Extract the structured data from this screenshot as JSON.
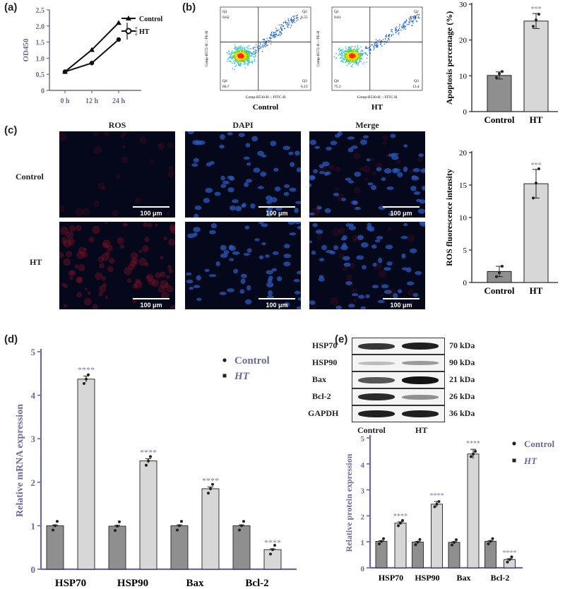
{
  "panels": {
    "a": "(a)",
    "b": "(b)",
    "c": "(c)",
    "d": "(d)",
    "e": "(e)"
  },
  "chart_data": [
    {
      "id": "a",
      "type": "line",
      "categories": [
        "0 h",
        "12 h",
        "24 h"
      ],
      "series": [
        {
          "name": "Control",
          "values": [
            0.58,
            1.26,
            2.1
          ],
          "marker": "triangle"
        },
        {
          "name": "HT",
          "values": [
            0.58,
            0.85,
            1.58
          ],
          "marker": "circle"
        }
      ],
      "ylabel": "OD450",
      "ylim": [
        0,
        2.5
      ],
      "yticks": [
        "0",
        "0.5",
        "1.0",
        "1.5",
        "2.0",
        "2.5"
      ],
      "annotation": "***",
      "legend": "top-right"
    },
    {
      "id": "b",
      "type": "bar",
      "categories": [
        "Control",
        "HT"
      ],
      "values": [
        10.1,
        25.3
      ],
      "errors": [
        1.0,
        2.1
      ],
      "points": [
        [
          9.5,
          10.6,
          11.2
        ],
        [
          23.8,
          25.6,
          27.2
        ]
      ],
      "significance": [
        "",
        "***"
      ],
      "ylabel": "Apoptosis percentage (%)",
      "ylim": [
        0,
        30
      ],
      "yticks": [
        "0",
        "10",
        "20",
        "30"
      ]
    },
    {
      "id": "c",
      "type": "bar",
      "categories": [
        "Control",
        "HT"
      ],
      "values": [
        1.7,
        15.2
      ],
      "errors": [
        0.8,
        2.2
      ],
      "points": [
        [
          0.9,
          1.5,
          2.5
        ],
        [
          13.0,
          15.3,
          17.5
        ]
      ],
      "significance": [
        "",
        "***"
      ],
      "ylabel": "ROS fluorescence intensity",
      "ylim": [
        0,
        20
      ],
      "yticks": [
        "0",
        "5",
        "10",
        "15",
        "20"
      ]
    },
    {
      "id": "d",
      "type": "bar",
      "categories": [
        "HSP70",
        "HSP90",
        "Bax",
        "Bcl-2"
      ],
      "series": [
        {
          "name": "Control",
          "values": [
            1.0,
            0.99,
            1.0,
            1.0
          ]
        },
        {
          "name": "HT",
          "values": [
            4.37,
            2.49,
            1.85,
            0.45
          ]
        }
      ],
      "errors": [
        [
          0.02,
          0.02,
          0.02,
          0.02
        ],
        [
          0.07,
          0.05,
          0.04,
          0.02
        ]
      ],
      "significance": [
        "****",
        "****",
        "****",
        "****"
      ],
      "ylabel": "Relative mRNA expression",
      "ylim": [
        0,
        5
      ],
      "yticks": [
        "0",
        "1",
        "2",
        "3",
        "4",
        "5"
      ],
      "legend": "top-right"
    },
    {
      "id": "e",
      "type": "bar",
      "categories": [
        "HSP70",
        "HSP90",
        "Bax",
        "Bcl-2"
      ],
      "series": [
        {
          "name": "Control",
          "values": [
            1.02,
            0.99,
            0.98,
            1.02
          ]
        },
        {
          "name": "HT",
          "values": [
            1.72,
            2.45,
            4.38,
            0.32
          ]
        }
      ],
      "errors": [
        [
          0.02,
          0.02,
          0.02,
          0.02
        ],
        [
          0.05,
          0.1,
          0.18,
          0.03
        ]
      ],
      "significance": [
        "****",
        "****",
        "****",
        "****"
      ],
      "ylabel": "Relative protein expression",
      "ylim": [
        0,
        5
      ],
      "yticks": [
        "0",
        "1",
        "2",
        "3",
        "4",
        "5"
      ],
      "legend": "top-right"
    }
  ],
  "flow": {
    "plots": [
      {
        "caption": "Control",
        "q1": "Q1",
        "q1v": "0.62",
        "q2": "Q2",
        "q2v": "6.55",
        "q3": "Q3",
        "q3v": "6.15",
        "q4": "Q4",
        "q4v": "86.7",
        "ylabel": "Comp-B572-H :: PE-H",
        "xlabel": "Comp-B530-H :: FITC-H"
      },
      {
        "caption": "HT",
        "q1": "Q1",
        "q1v": "0.81",
        "q2": "Q2",
        "q2v": "10.4",
        "q3": "Q3",
        "q3v": "13.4",
        "q4": "Q4",
        "q4v": "75.3",
        "ylabel": "Comp-B572-H :: PE-H",
        "xlabel": "Comp-B530-H :: FITC-H"
      }
    ]
  },
  "microscopy": {
    "columns": [
      "ROS",
      "DAPI",
      "Merge"
    ],
    "rows": [
      "Control",
      "HT"
    ],
    "scale_bar": "100 μm"
  },
  "blot": {
    "proteins": [
      {
        "name": "HSP70",
        "kda": "70 kDa"
      },
      {
        "name": "HSP90",
        "kda": "90 kDa"
      },
      {
        "name": "Bax",
        "kda": "21 kDa"
      },
      {
        "name": "Bcl-2",
        "kda": "26 kDa"
      },
      {
        "name": "GAPDH",
        "kda": "36 kDa"
      }
    ],
    "lanes": [
      "Control",
      "HT"
    ]
  },
  "colors": {
    "control_bar": "#8f8f8f",
    "ht_bar": "#d7d7d7",
    "axis_accent": "#6a6aa0",
    "star": "#7a7ab0",
    "line": "#111111"
  }
}
